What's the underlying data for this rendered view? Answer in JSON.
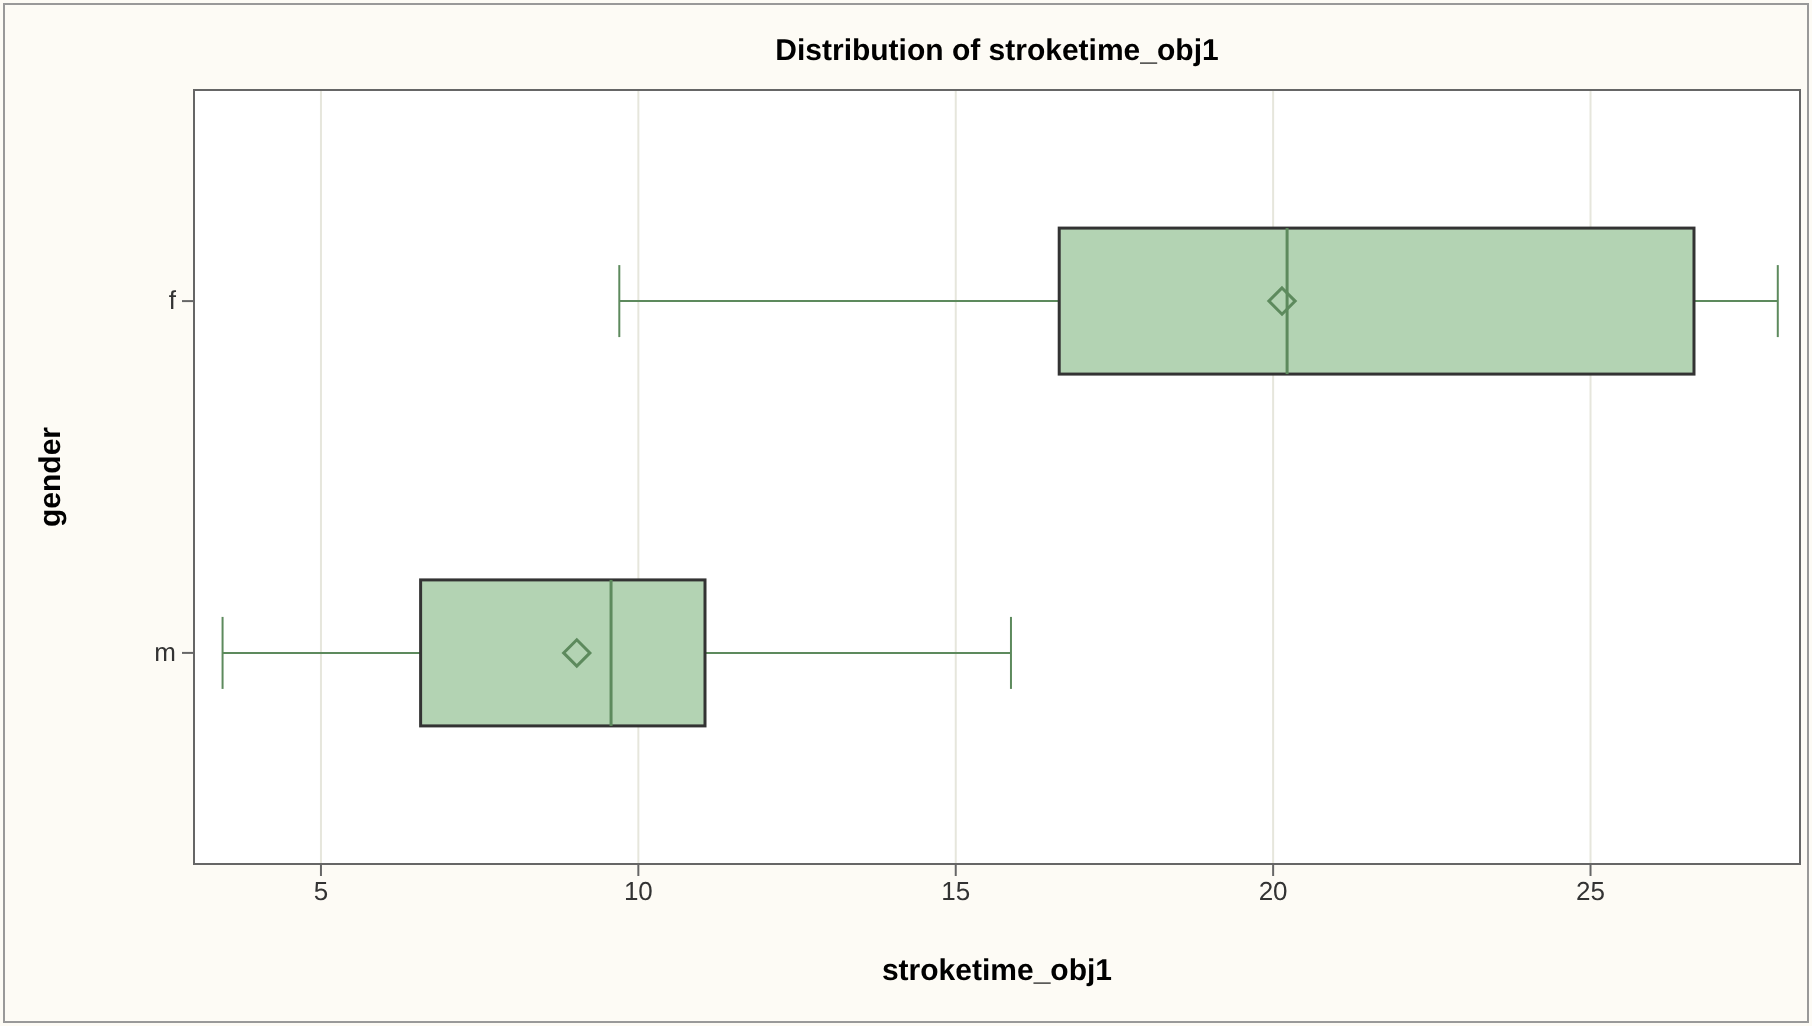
{
  "chart_data": {
    "type": "box",
    "title": "Distribution of stroketime_obj1",
    "xlabel": "stroketime_obj1",
    "ylabel": "gender",
    "orientation": "horizontal",
    "categories": [
      "f",
      "m"
    ],
    "boxes": [
      {
        "low": 9.7,
        "q1": 16.63,
        "median": 20.22,
        "q3": 26.63,
        "high": 27.95,
        "mean": 20.14
      },
      {
        "low": 3.45,
        "q1": 6.57,
        "median": 9.57,
        "q3": 11.05,
        "high": 15.87,
        "mean": 9.03
      }
    ],
    "color": "#b3d3b3",
    "xlim": [
      3,
      28.3
    ],
    "xticks": [
      5,
      10,
      15,
      20,
      25
    ],
    "grid": "x",
    "marker": "diamond"
  }
}
